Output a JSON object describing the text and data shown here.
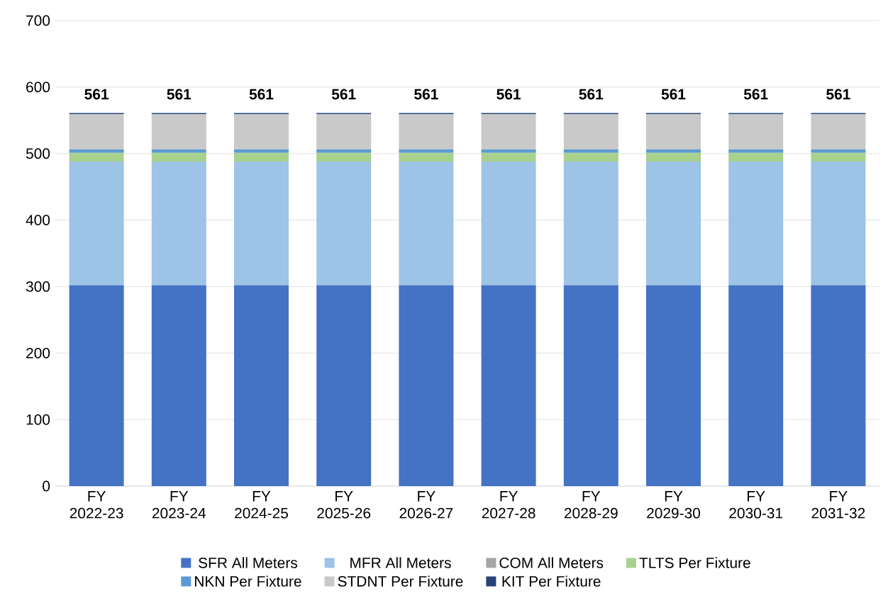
{
  "chart_data": {
    "type": "bar",
    "stacked": true,
    "categories": [
      "FY 2022-23",
      "FY 2023-24",
      "FY 2024-25",
      "FY 2025-26",
      "FY 2026-27",
      "FY 2027-28",
      "FY 2028-29",
      "FY 2029-30",
      "FY 2030-31",
      "FY 2031-32"
    ],
    "series": [
      {
        "name": "SFR All Meters",
        "color": "#4472c4",
        "values": [
          302,
          302,
          302,
          302,
          302,
          302,
          302,
          302,
          302,
          302
        ]
      },
      {
        "name": "MFR All Meters",
        "color": "#9dc3e6",
        "values": [
          186,
          186,
          186,
          186,
          186,
          186,
          186,
          186,
          186,
          186
        ]
      },
      {
        "name": "COM All Meters",
        "color": "#a5a5a5",
        "values": [
          0,
          0,
          0,
          0,
          0,
          0,
          0,
          0,
          0,
          0
        ]
      },
      {
        "name": "TLTS Per Fixture",
        "color": "#a9d18e",
        "values": [
          13,
          13,
          13,
          13,
          13,
          13,
          13,
          13,
          13,
          13
        ]
      },
      {
        "name": "NKN Per Fixture",
        "color": "#5b9bd5",
        "values": [
          5,
          5,
          5,
          5,
          5,
          5,
          5,
          5,
          5,
          5
        ]
      },
      {
        "name": "STDNT Per Fixture",
        "color": "#c9c9c9",
        "values": [
          53,
          53,
          53,
          53,
          53,
          53,
          53,
          53,
          53,
          53
        ]
      },
      {
        "name": "KIT Per Fixture",
        "color": "#264478",
        "values": [
          2,
          2,
          2,
          2,
          2,
          2,
          2,
          2,
          2,
          2
        ]
      }
    ],
    "totals": [
      "561",
      "561",
      "561",
      "561",
      "561",
      "561",
      "561",
      "561",
      "561",
      "561"
    ],
    "ylim": [
      0,
      700
    ],
    "yticks": [
      0,
      100,
      200,
      300,
      400,
      500,
      600,
      700
    ],
    "grid": "y",
    "legend": "bottom"
  }
}
